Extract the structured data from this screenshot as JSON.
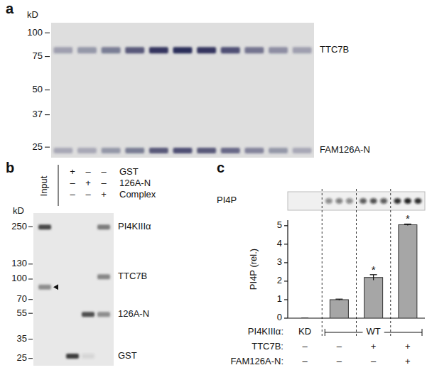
{
  "panel_a": {
    "letter": "a",
    "unit": "kD",
    "kd_range": [
      113,
      22
    ],
    "markers": [
      100,
      75,
      50,
      37,
      25
    ],
    "bands": [
      {
        "label": "TTC7B",
        "kd": 81,
        "intensity": [
          0.35,
          0.4,
          0.55,
          0.75,
          0.95,
          1,
          0.95,
          0.8,
          0.6,
          0.45,
          0.35
        ]
      },
      {
        "label": "FAM126A-N",
        "kd": 24,
        "intensity": [
          0.3,
          0.3,
          0.4,
          0.55,
          0.75,
          0.8,
          0.75,
          0.65,
          0.5,
          0.4,
          0.3
        ]
      }
    ]
  },
  "panel_b": {
    "letter": "b",
    "unit": "kD",
    "kd_range": [
      317,
      22
    ],
    "markers": [
      250,
      130,
      100,
      70,
      55,
      35,
      25
    ],
    "input_label": "Input",
    "header": [
      {
        "name": "GST",
        "labels": [
          "+",
          "–",
          "–"
        ]
      },
      {
        "name": "126A-N",
        "labels": [
          "–",
          "+",
          "–"
        ]
      },
      {
        "name": "Complex",
        "labels": [
          "–",
          "–",
          "+"
        ]
      }
    ],
    "bands": [
      {
        "label": "PI4KIIIα",
        "kd": 248,
        "intensity": [
          0.9,
          0,
          0,
          0.6
        ]
      },
      {
        "arrowhead": true,
        "kd": 87,
        "intensity": [
          0.5,
          0,
          0,
          0
        ]
      },
      {
        "label": "TTC7B",
        "kd": 104,
        "intensity": [
          0,
          0,
          0,
          0.55
        ]
      },
      {
        "label": "126A-N",
        "kd": 54,
        "intensity": [
          0,
          0,
          0.85,
          0.5
        ]
      },
      {
        "label": "GST",
        "kd": 26,
        "intensity": [
          0,
          0.95,
          0.1,
          0
        ]
      }
    ]
  },
  "panel_c": {
    "letter": "c",
    "blot": {
      "label": "PI4P",
      "intensity": [
        [
          0,
          0,
          0
        ],
        [
          0.45,
          0.5,
          0.45
        ],
        [
          0.65,
          0.7,
          0.65
        ],
        [
          0.85,
          0.9,
          0.85
        ]
      ]
    }
  },
  "chart_data": {
    "type": "bar",
    "ylabel": "PI4P (rel.)",
    "categories": [
      null,
      null,
      null,
      null
    ],
    "values": [
      0,
      1,
      2.2,
      5.05
    ],
    "errors": [
      0,
      0.03,
      0.15,
      0.04
    ],
    "significance": [
      null,
      null,
      "*",
      "*"
    ],
    "color": "#a6a6a6",
    "ylim": [
      0,
      5.3
    ],
    "yticks": [
      0,
      1,
      2,
      3,
      4,
      5
    ],
    "grid": false,
    "table": [
      {
        "name": "PI4KIIIα:",
        "groups": [
          {
            "label": "KD",
            "span": 1
          },
          {
            "label": "WT",
            "span": 3
          }
        ]
      },
      {
        "name": "TTC7B:",
        "labels": [
          "–",
          "–",
          "+",
          "+"
        ]
      },
      {
        "name": "FAM126A-N:",
        "labels": [
          "–",
          "–",
          "–",
          "+"
        ]
      }
    ]
  }
}
